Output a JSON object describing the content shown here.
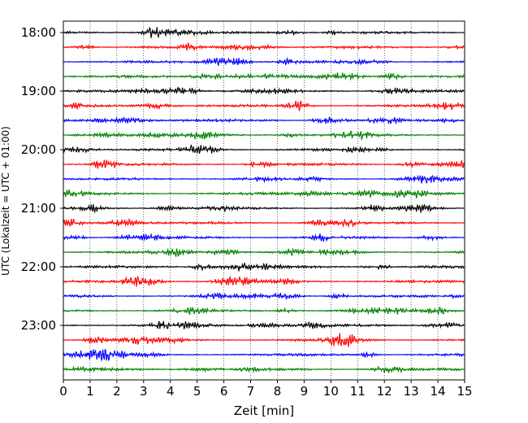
{
  "chart_data": {
    "type": "line",
    "subtype": "helicorder",
    "xlabel": "Zeit  [min]",
    "ylabel": "UTC (Lokalzeit = UTC + 01:00)",
    "xlim": [
      0,
      15
    ],
    "x_ticks": [
      "0",
      "1",
      "2",
      "3",
      "4",
      "5",
      "6",
      "7",
      "8",
      "9",
      "10",
      "11",
      "12",
      "13",
      "14",
      "15"
    ],
    "y_tick_labels": [
      "18:00",
      "19:00",
      "20:00",
      "21:00",
      "22:00",
      "23:00"
    ],
    "trace_start_times": [
      "18:00",
      "18:15",
      "18:30",
      "18:45",
      "19:00",
      "19:15",
      "19:30",
      "19:45",
      "20:00",
      "20:15",
      "20:30",
      "20:45",
      "21:00",
      "21:15",
      "21:30",
      "21:45",
      "22:00",
      "22:15",
      "22:30",
      "22:45",
      "23:00",
      "23:15",
      "23:30",
      "23:45"
    ],
    "trace_minutes_per_line": 15,
    "color_cycle": [
      "#000000",
      "#ff0000",
      "#0000ff",
      "#008000"
    ],
    "x_grid": "dotted vertical lines at each minute"
  }
}
